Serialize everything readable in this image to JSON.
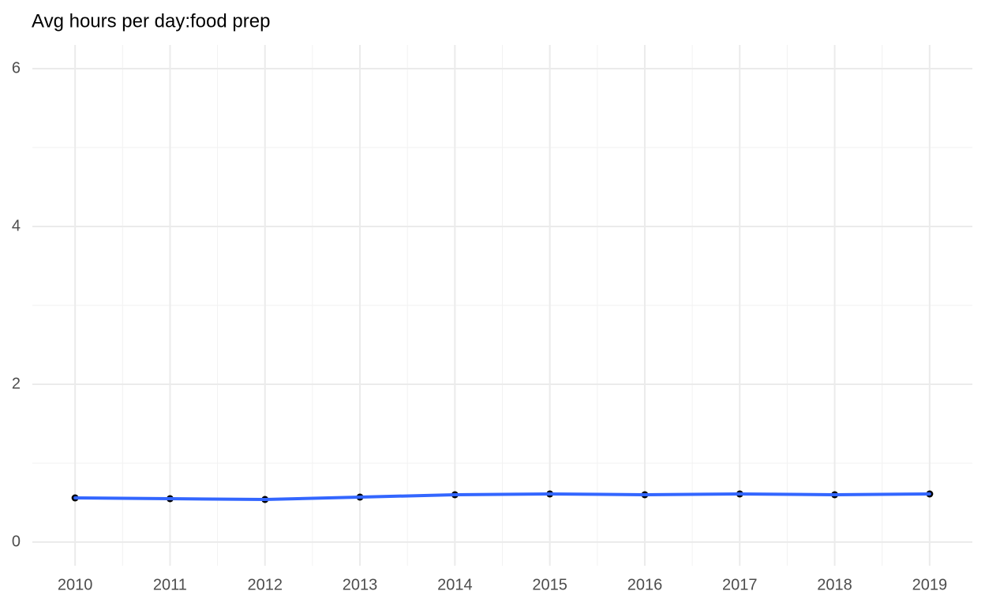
{
  "chart_data": {
    "type": "line",
    "title": "Avg hours per day:food prep",
    "x": [
      2010,
      2011,
      2012,
      2013,
      2014,
      2015,
      2016,
      2017,
      2018,
      2019
    ],
    "series": [
      {
        "color": "#3366ff",
        "point_color": "#000000",
        "values": [
          0.56,
          0.55,
          0.54,
          0.57,
          0.6,
          0.61,
          0.6,
          0.61,
          0.6,
          0.61
        ]
      }
    ],
    "xlim": [
      2009.55,
      2019.45
    ],
    "xticks": [
      2010,
      2011,
      2012,
      2013,
      2014,
      2015,
      2016,
      2017,
      2018,
      2019
    ],
    "xminor": [
      2010.5,
      2011.5,
      2012.5,
      2013.5,
      2014.5,
      2015.5,
      2016.5,
      2017.5,
      2018.5
    ],
    "ylim": [
      -0.3,
      6.3
    ],
    "yticks": [
      0,
      2,
      4,
      6
    ],
    "yminor": [
      1,
      3,
      5
    ],
    "grid": true
  }
}
